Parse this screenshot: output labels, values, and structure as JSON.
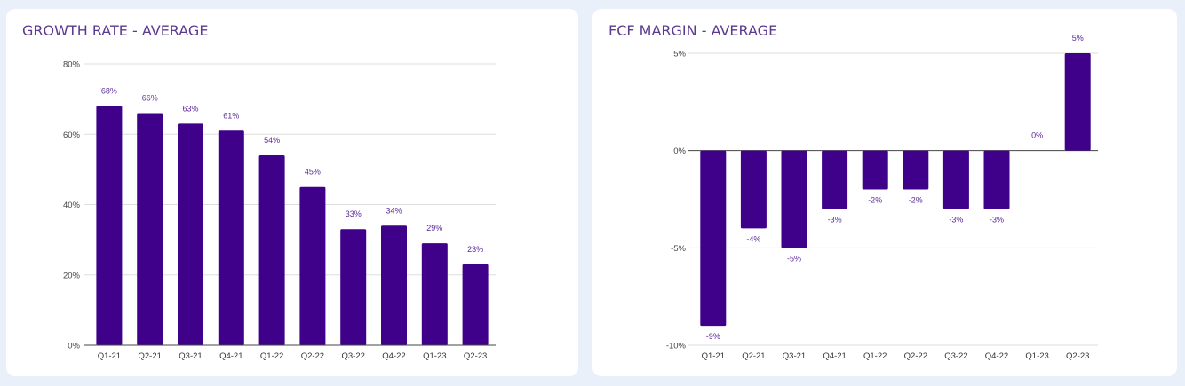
{
  "colors": {
    "bar": "#3f008a",
    "grid": "#dddddd",
    "baseline": "#444444",
    "title": "#5b3a91",
    "value_label": "#5b2a9a",
    "background": "#eaf0f9",
    "card": "#ffffff"
  },
  "chart_data": [
    {
      "id": "growth",
      "type": "bar",
      "title": "GROWTH RATE - AVERAGE",
      "categories": [
        "Q1-21",
        "Q2-21",
        "Q3-21",
        "Q4-21",
        "Q1-22",
        "Q2-22",
        "Q3-22",
        "Q4-22",
        "Q1-23",
        "Q2-23"
      ],
      "values": [
        68,
        66,
        63,
        61,
        54,
        45,
        33,
        34,
        29,
        23
      ],
      "value_labels": [
        "68%",
        "66%",
        "63%",
        "61%",
        "54%",
        "45%",
        "33%",
        "34%",
        "29%",
        "23%"
      ],
      "ylim": [
        0,
        80
      ],
      "yticks": [
        0,
        20,
        40,
        60,
        80
      ],
      "ytick_labels": [
        "0%",
        "20%",
        "40%",
        "60%",
        "80%"
      ],
      "xlabel": "",
      "ylabel": "",
      "grid": true,
      "legend": "none"
    },
    {
      "id": "fcf",
      "type": "bar",
      "title": "FCF MARGIN - AVERAGE",
      "categories": [
        "Q1-21",
        "Q2-21",
        "Q3-21",
        "Q4-21",
        "Q1-22",
        "Q2-22",
        "Q3-22",
        "Q4-22",
        "Q1-23",
        "Q2-23"
      ],
      "values": [
        -9,
        -4,
        -5,
        -3,
        -2,
        -2,
        -3,
        -3,
        0,
        5
      ],
      "value_labels": [
        "-9%",
        "-4%",
        "-5%",
        "-3%",
        "-2%",
        "-2%",
        "-3%",
        "-3%",
        "0%",
        "5%"
      ],
      "ylim": [
        -10,
        5
      ],
      "yticks": [
        -10,
        -5,
        0,
        5
      ],
      "ytick_labels": [
        "-10%",
        "-5%",
        "0%",
        "5%"
      ],
      "xlabel": "",
      "ylabel": "",
      "grid": true,
      "legend": "none"
    }
  ]
}
